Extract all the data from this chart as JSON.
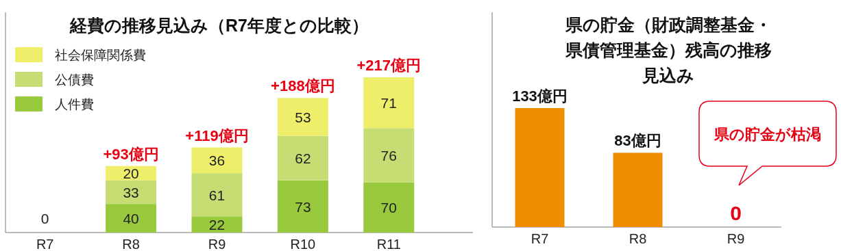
{
  "chart_data": [
    {
      "type": "bar",
      "title": "経費の推移見込み（R7年度との比較）",
      "stacked": true,
      "legend": "top left",
      "categories": [
        "R7",
        "R8",
        "R9",
        "R10",
        "R11"
      ],
      "series": [
        {
          "name": "人件費",
          "color": "#99c93c",
          "values": [
            0,
            40,
            22,
            73,
            70
          ],
          "value_labels": [
            null,
            "40",
            "22",
            "73",
            "70"
          ]
        },
        {
          "name": "公債費",
          "color": "#c5dd72",
          "values": [
            0,
            33,
            61,
            62,
            76
          ],
          "value_labels": [
            null,
            "33",
            "61",
            "62",
            "76"
          ]
        },
        {
          "name": "社会保障関係費",
          "color": "#eeee6a",
          "values": [
            0,
            20,
            36,
            53,
            71
          ],
          "value_labels": [
            null,
            "20",
            "36",
            "53",
            "71"
          ]
        }
      ],
      "totals": [
        "0",
        "+93億円",
        "+119億円",
        "+188億円",
        "+217億円"
      ]
    },
    {
      "type": "bar",
      "title": "県の貯金（財政調整基金・県債管理基金）残高の推移見込み",
      "categories": [
        "R7",
        "R8",
        "R9"
      ],
      "values": [
        133,
        83,
        0
      ],
      "color": "#f08c00",
      "value_labels": [
        "133億円",
        "83億円",
        "0"
      ],
      "annotations": [
        "県の貯金が枯渇"
      ]
    }
  ]
}
